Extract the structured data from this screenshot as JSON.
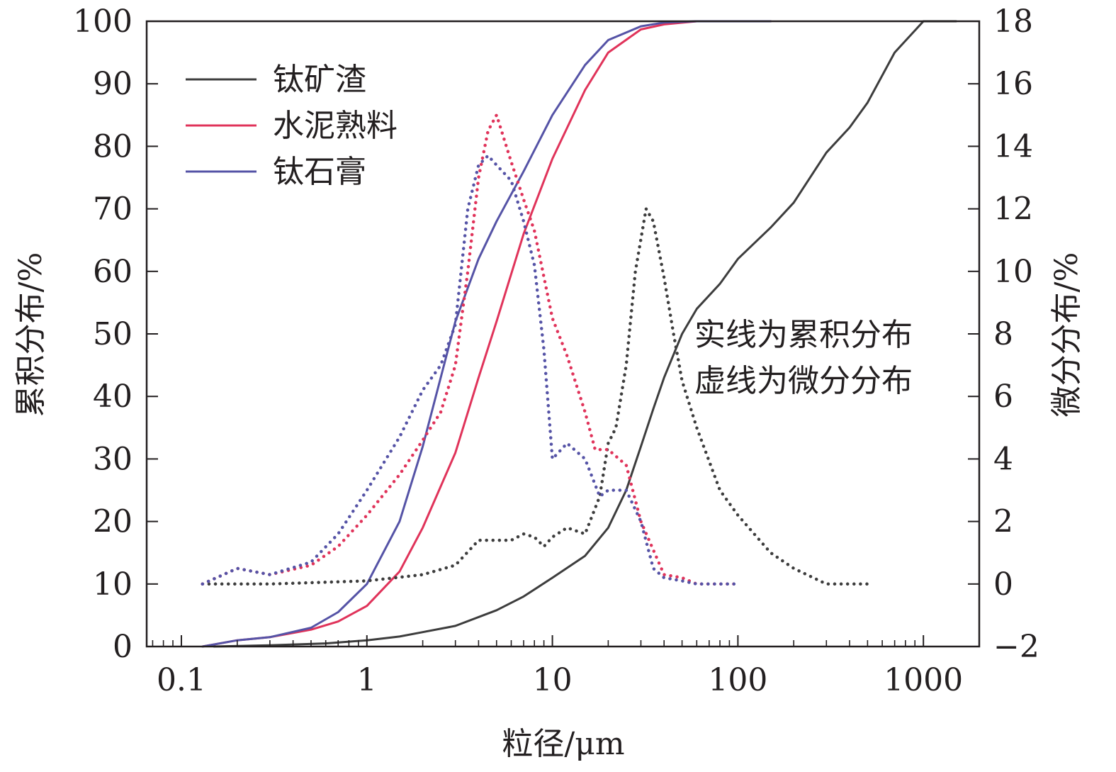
{
  "chart_data": {
    "type": "line",
    "x_scale": "log",
    "xlabel": "粒径/μm",
    "ylabel_left": "累积分布/%",
    "ylabel_right": "微分分布/%",
    "xlim": [
      0.065,
      2000
    ],
    "ylim_left": [
      0,
      100
    ],
    "ylim_right": [
      -2,
      18
    ],
    "x_ticks": [
      {
        "value": 0.1,
        "label": "0.1"
      },
      {
        "value": 1,
        "label": "1"
      },
      {
        "value": 10,
        "label": "10"
      },
      {
        "value": 100,
        "label": "100"
      },
      {
        "value": 1000,
        "label": "1000"
      }
    ],
    "y_ticks_left": [
      0,
      10,
      20,
      30,
      40,
      50,
      60,
      70,
      80,
      90,
      100
    ],
    "y_ticks_right": [
      {
        "value": -2,
        "label": "−2"
      },
      {
        "value": 0,
        "label": "0"
      },
      {
        "value": 2,
        "label": "2"
      },
      {
        "value": 4,
        "label": "4"
      },
      {
        "value": 6,
        "label": "6"
      },
      {
        "value": 8,
        "label": "8"
      },
      {
        "value": 10,
        "label": "10"
      },
      {
        "value": 12,
        "label": "12"
      },
      {
        "value": 14,
        "label": "14"
      },
      {
        "value": 16,
        "label": "16"
      },
      {
        "value": 18,
        "label": "18"
      }
    ],
    "legend": {
      "placement": "top-left",
      "items": [
        {
          "label": "钛矿渣",
          "color": "#3d3d3d"
        },
        {
          "label": "水泥熟料",
          "color": "#e0335a"
        },
        {
          "label": "钛石膏",
          "color": "#5553a6"
        }
      ]
    },
    "annotation": [
      "实线为累积分布",
      "虚线为微分分布"
    ],
    "series": [
      {
        "name": "钛矿渣",
        "kind": "cumulative",
        "axis": "left",
        "style": "solid",
        "color": "#3d3d3d",
        "points": [
          [
            0.15,
            0
          ],
          [
            0.3,
            0.2
          ],
          [
            0.6,
            0.5
          ],
          [
            1,
            1
          ],
          [
            1.5,
            1.6
          ],
          [
            2,
            2.3
          ],
          [
            3,
            3.3
          ],
          [
            5,
            5.8
          ],
          [
            7,
            8
          ],
          [
            10,
            11
          ],
          [
            15,
            14.5
          ],
          [
            20,
            19
          ],
          [
            25,
            25
          ],
          [
            30,
            32
          ],
          [
            35,
            38
          ],
          [
            40,
            43
          ],
          [
            50,
            50
          ],
          [
            60,
            54
          ],
          [
            80,
            58
          ],
          [
            100,
            62
          ],
          [
            150,
            67
          ],
          [
            200,
            71
          ],
          [
            300,
            79
          ],
          [
            400,
            83
          ],
          [
            500,
            87
          ],
          [
            700,
            95
          ],
          [
            1000,
            100
          ],
          [
            1500,
            100
          ]
        ]
      },
      {
        "name": "水泥熟料",
        "kind": "cumulative",
        "axis": "left",
        "style": "solid",
        "color": "#e0335a",
        "points": [
          [
            0.13,
            0
          ],
          [
            0.2,
            1
          ],
          [
            0.3,
            1.5
          ],
          [
            0.5,
            2.7
          ],
          [
            0.7,
            4
          ],
          [
            1,
            6.5
          ],
          [
            1.5,
            12
          ],
          [
            2,
            19
          ],
          [
            3,
            31
          ],
          [
            4,
            43
          ],
          [
            5,
            52
          ],
          [
            7,
            66
          ],
          [
            10,
            78
          ],
          [
            15,
            89
          ],
          [
            20,
            95
          ],
          [
            30,
            98.7
          ],
          [
            40,
            99.5
          ],
          [
            60,
            100
          ],
          [
            150,
            100
          ]
        ]
      },
      {
        "name": "钛石膏",
        "kind": "cumulative",
        "axis": "left",
        "style": "solid",
        "color": "#5553a6",
        "points": [
          [
            0.13,
            0
          ],
          [
            0.2,
            1
          ],
          [
            0.3,
            1.5
          ],
          [
            0.5,
            3
          ],
          [
            0.7,
            5.5
          ],
          [
            1,
            10
          ],
          [
            1.5,
            20
          ],
          [
            2,
            32
          ],
          [
            3,
            52
          ],
          [
            4,
            62
          ],
          [
            5,
            68
          ],
          [
            7,
            76
          ],
          [
            10,
            85
          ],
          [
            15,
            93
          ],
          [
            20,
            97
          ],
          [
            30,
            99.2
          ],
          [
            40,
            99.8
          ],
          [
            60,
            100
          ],
          [
            150,
            100
          ]
        ]
      },
      {
        "name": "钛矿渣",
        "kind": "differential",
        "axis": "right",
        "style": "dotted",
        "color": "#3d3d3d",
        "points": [
          [
            0.13,
            0
          ],
          [
            0.3,
            0
          ],
          [
            1,
            0.1
          ],
          [
            2,
            0.3
          ],
          [
            3,
            0.6
          ],
          [
            4,
            1.4
          ],
          [
            5,
            1.4
          ],
          [
            6,
            1.4
          ],
          [
            7,
            1.6
          ],
          [
            8,
            1.5
          ],
          [
            9,
            1.2
          ],
          [
            10,
            1.5
          ],
          [
            12,
            1.8
          ],
          [
            15,
            1.6
          ],
          [
            18,
            2.8
          ],
          [
            20,
            4.5
          ],
          [
            22,
            5
          ],
          [
            25,
            7
          ],
          [
            28,
            10
          ],
          [
            32,
            12
          ],
          [
            35,
            11.6
          ],
          [
            40,
            9.8
          ],
          [
            45,
            8
          ],
          [
            50,
            6.5
          ],
          [
            60,
            5
          ],
          [
            80,
            3
          ],
          [
            100,
            2.2
          ],
          [
            150,
            1
          ],
          [
            200,
            0.5
          ],
          [
            300,
            0
          ],
          [
            500,
            0
          ]
        ]
      },
      {
        "name": "水泥熟料",
        "kind": "differential",
        "axis": "right",
        "style": "dotted",
        "color": "#e0335a",
        "points": [
          [
            0.13,
            0
          ],
          [
            0.2,
            0.5
          ],
          [
            0.3,
            0.3
          ],
          [
            0.5,
            0.6
          ],
          [
            0.7,
            1.2
          ],
          [
            1,
            2.2
          ],
          [
            1.5,
            3.5
          ],
          [
            2,
            4.6
          ],
          [
            2.5,
            5.5
          ],
          [
            3,
            7
          ],
          [
            3.5,
            10
          ],
          [
            4,
            13
          ],
          [
            4.5,
            14.5
          ],
          [
            5,
            15
          ],
          [
            6,
            13.5
          ],
          [
            7,
            12.3
          ],
          [
            8,
            11.3
          ],
          [
            10,
            8.5
          ],
          [
            12,
            7.3
          ],
          [
            15,
            5.5
          ],
          [
            17,
            4.3
          ],
          [
            20,
            4.3
          ],
          [
            25,
            3.8
          ],
          [
            30,
            2
          ],
          [
            40,
            0.3
          ],
          [
            50,
            0.2
          ],
          [
            60,
            0
          ],
          [
            100,
            0
          ]
        ]
      },
      {
        "name": "钛石膏",
        "kind": "differential",
        "axis": "right",
        "style": "dotted",
        "color": "#5553a6",
        "points": [
          [
            0.13,
            0
          ],
          [
            0.2,
            0.5
          ],
          [
            0.3,
            0.3
          ],
          [
            0.5,
            0.7
          ],
          [
            0.7,
            1.6
          ],
          [
            1,
            3
          ],
          [
            1.5,
            4.7
          ],
          [
            2,
            6.2
          ],
          [
            2.5,
            7
          ],
          [
            3,
            8.3
          ],
          [
            3.5,
            12
          ],
          [
            4,
            13.4
          ],
          [
            4.5,
            13.7
          ],
          [
            5,
            13.4
          ],
          [
            6,
            12.9
          ],
          [
            7,
            11.6
          ],
          [
            8,
            10.2
          ],
          [
            9,
            7.5
          ],
          [
            10,
            4
          ],
          [
            12,
            4.5
          ],
          [
            15,
            4
          ],
          [
            18,
            2.8
          ],
          [
            20,
            3
          ],
          [
            25,
            3
          ],
          [
            30,
            2
          ],
          [
            35,
            0.5
          ],
          [
            40,
            0.2
          ],
          [
            50,
            0.1
          ],
          [
            60,
            0
          ],
          [
            100,
            0
          ]
        ]
      }
    ]
  }
}
